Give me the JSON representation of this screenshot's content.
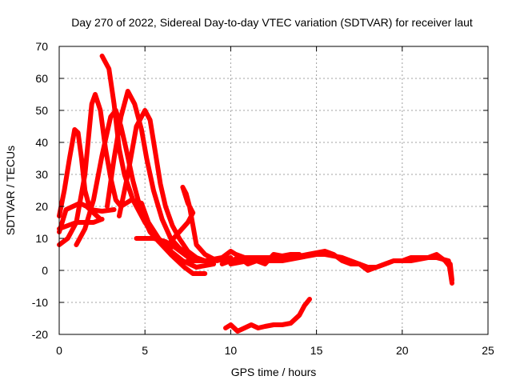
{
  "chart_data": {
    "type": "line",
    "title": "Day 270 of 2022, Sidereal Day-to-day VTEC variation (SDTVAR) for receiver laut",
    "xlabel": "GPS time / hours",
    "ylabel": "SDTVAR / TECUs",
    "xlim": [
      0,
      25
    ],
    "ylim": [
      -20,
      70
    ],
    "xticks": [
      "0",
      "5",
      "10",
      "15",
      "20",
      "25"
    ],
    "yticks": [
      "-20",
      "-10",
      "0",
      "10",
      "20",
      "30",
      "40",
      "50",
      "60",
      "70"
    ],
    "grid": true,
    "color": "#ff0000",
    "series": [
      {
        "name": "arc-1",
        "points": [
          [
            0.0,
            17
          ],
          [
            0.3,
            25
          ],
          [
            0.6,
            35
          ],
          [
            0.9,
            44
          ],
          [
            1.1,
            43
          ],
          [
            1.3,
            35
          ],
          [
            1.5,
            25
          ],
          [
            1.8,
            19
          ],
          [
            2.5,
            18.5
          ],
          [
            3.2,
            19
          ]
        ]
      },
      {
        "name": "arc-2",
        "points": [
          [
            0.0,
            12
          ],
          [
            0.4,
            19
          ],
          [
            0.8,
            20
          ],
          [
            1.2,
            21
          ],
          [
            1.6,
            20
          ],
          [
            2.0,
            18
          ],
          [
            2.4,
            16
          ]
        ]
      },
      {
        "name": "arc-3",
        "points": [
          [
            0.0,
            8
          ],
          [
            0.5,
            10
          ],
          [
            1.0,
            15
          ],
          [
            1.5,
            30
          ],
          [
            1.9,
            52
          ],
          [
            2.1,
            55
          ],
          [
            2.4,
            50
          ],
          [
            2.7,
            38
          ],
          [
            3.0,
            29
          ],
          [
            3.3,
            22
          ],
          [
            3.6,
            20
          ],
          [
            4.2,
            22
          ],
          [
            4.8,
            21
          ],
          [
            5.2,
            15
          ],
          [
            5.8,
            10
          ],
          [
            6.5,
            6
          ],
          [
            7.2,
            3
          ],
          [
            8.0,
            1
          ],
          [
            9.0,
            2
          ]
        ]
      },
      {
        "name": "arc-4",
        "points": [
          [
            0.0,
            13
          ],
          [
            0.5,
            14
          ],
          [
            1.0,
            15
          ],
          [
            1.5,
            15
          ],
          [
            2.0,
            15
          ],
          [
            2.5,
            16
          ]
        ]
      },
      {
        "name": "arc-5",
        "points": [
          [
            1.0,
            8
          ],
          [
            1.5,
            13
          ],
          [
            2.0,
            22
          ],
          [
            2.5,
            36
          ],
          [
            3.0,
            48
          ],
          [
            3.3,
            50
          ],
          [
            3.6,
            45
          ],
          [
            3.9,
            38
          ],
          [
            4.3,
            28
          ],
          [
            4.8,
            18
          ],
          [
            5.3,
            12
          ],
          [
            5.8,
            9
          ],
          [
            6.5,
            7
          ]
        ]
      },
      {
        "name": "arc-6",
        "points": [
          [
            2.5,
            67
          ],
          [
            2.9,
            63
          ],
          [
            3.2,
            52
          ],
          [
            3.5,
            38
          ],
          [
            3.8,
            30
          ],
          [
            4.3,
            22
          ],
          [
            5.0,
            15
          ],
          [
            5.8,
            9
          ],
          [
            6.5,
            5
          ],
          [
            7.3,
            1
          ],
          [
            7.8,
            -1
          ],
          [
            8.5,
            -1
          ]
        ]
      },
      {
        "name": "arc-7",
        "points": [
          [
            2.8,
            20
          ],
          [
            3.2,
            35
          ],
          [
            3.6,
            48
          ],
          [
            4.0,
            56
          ],
          [
            4.4,
            52
          ],
          [
            4.8,
            44
          ],
          [
            5.1,
            35
          ],
          [
            5.5,
            25
          ],
          [
            6.0,
            16
          ],
          [
            6.5,
            10
          ],
          [
            7.0,
            7
          ],
          [
            7.5,
            5
          ]
        ]
      },
      {
        "name": "arc-8",
        "points": [
          [
            3.5,
            17
          ],
          [
            4.0,
            30
          ],
          [
            4.5,
            45
          ],
          [
            5.0,
            50
          ],
          [
            5.3,
            47
          ],
          [
            5.6,
            37
          ],
          [
            5.9,
            27
          ],
          [
            6.2,
            20
          ],
          [
            6.6,
            14
          ],
          [
            7.0,
            10
          ],
          [
            7.5,
            6
          ],
          [
            8.0,
            4
          ],
          [
            8.5,
            3
          ],
          [
            9.0,
            2
          ]
        ]
      },
      {
        "name": "arc-9",
        "points": [
          [
            4.5,
            10
          ],
          [
            5.5,
            10
          ],
          [
            6.2,
            9
          ],
          [
            6.8,
            7
          ],
          [
            7.3,
            5
          ],
          [
            7.8,
            3
          ],
          [
            8.5,
            3
          ]
        ]
      },
      {
        "name": "arc-10",
        "points": [
          [
            6.5,
            9
          ],
          [
            7.0,
            12
          ],
          [
            7.5,
            15
          ],
          [
            7.8,
            18
          ],
          [
            7.5,
            21
          ],
          [
            7.2,
            26
          ],
          [
            7.4,
            24
          ],
          [
            7.6,
            20
          ],
          [
            8.0,
            8
          ],
          [
            8.5,
            5
          ],
          [
            9.2,
            3
          ],
          [
            10.0,
            4
          ]
        ]
      },
      {
        "name": "arc-11",
        "points": [
          [
            7.5,
            3
          ],
          [
            8.5,
            3
          ],
          [
            9.5,
            4
          ],
          [
            10.0,
            6
          ],
          [
            10.3,
            5
          ],
          [
            10.8,
            4
          ],
          [
            11.5,
            4
          ],
          [
            12.5,
            4
          ],
          [
            13.5,
            5
          ],
          [
            14.0,
            5
          ]
        ]
      },
      {
        "name": "arc-12",
        "points": [
          [
            9.5,
            2
          ],
          [
            10.0,
            3
          ],
          [
            10.5,
            4
          ],
          [
            11.0,
            2
          ],
          [
            11.5,
            3
          ],
          [
            12.0,
            2
          ],
          [
            12.5,
            5
          ],
          [
            13.5,
            4
          ],
          [
            14.5,
            5
          ],
          [
            15.5,
            6
          ],
          [
            16.0,
            5
          ],
          [
            16.5,
            3
          ],
          [
            17.0,
            2
          ],
          [
            17.5,
            2
          ],
          [
            18.0,
            0
          ],
          [
            18.5,
            1
          ],
          [
            19.0,
            2
          ],
          [
            19.5,
            3
          ],
          [
            20.0,
            3
          ],
          [
            20.5,
            4
          ],
          [
            21.0,
            4
          ],
          [
            21.5,
            4
          ],
          [
            22.0,
            5
          ],
          [
            22.5,
            3
          ],
          [
            22.8,
            1
          ],
          [
            22.9,
            -3
          ],
          [
            22.8,
            2
          ]
        ]
      },
      {
        "name": "arc-13",
        "points": [
          [
            10.0,
            2
          ],
          [
            11.0,
            3
          ],
          [
            12.0,
            3
          ],
          [
            13.0,
            3
          ],
          [
            14.0,
            4
          ],
          [
            15.0,
            5
          ],
          [
            15.5,
            5
          ],
          [
            16.5,
            4
          ],
          [
            17.5,
            2
          ],
          [
            18.0,
            1
          ],
          [
            18.5,
            1
          ],
          [
            19.5,
            3
          ],
          [
            20.5,
            3
          ],
          [
            21.5,
            4
          ],
          [
            22.0,
            4
          ],
          [
            22.7,
            3
          ],
          [
            22.9,
            -4
          ]
        ]
      },
      {
        "name": "arc-14",
        "points": [
          [
            9.7,
            -18
          ],
          [
            10.0,
            -17
          ],
          [
            10.4,
            -19
          ],
          [
            10.8,
            -18
          ],
          [
            11.2,
            -17
          ],
          [
            11.6,
            -18
          ],
          [
            12.0,
            -17.5
          ],
          [
            12.5,
            -17
          ],
          [
            13.0,
            -17
          ],
          [
            13.5,
            -16.5
          ],
          [
            14.0,
            -14
          ],
          [
            14.3,
            -11
          ],
          [
            14.6,
            -9
          ]
        ]
      }
    ]
  }
}
